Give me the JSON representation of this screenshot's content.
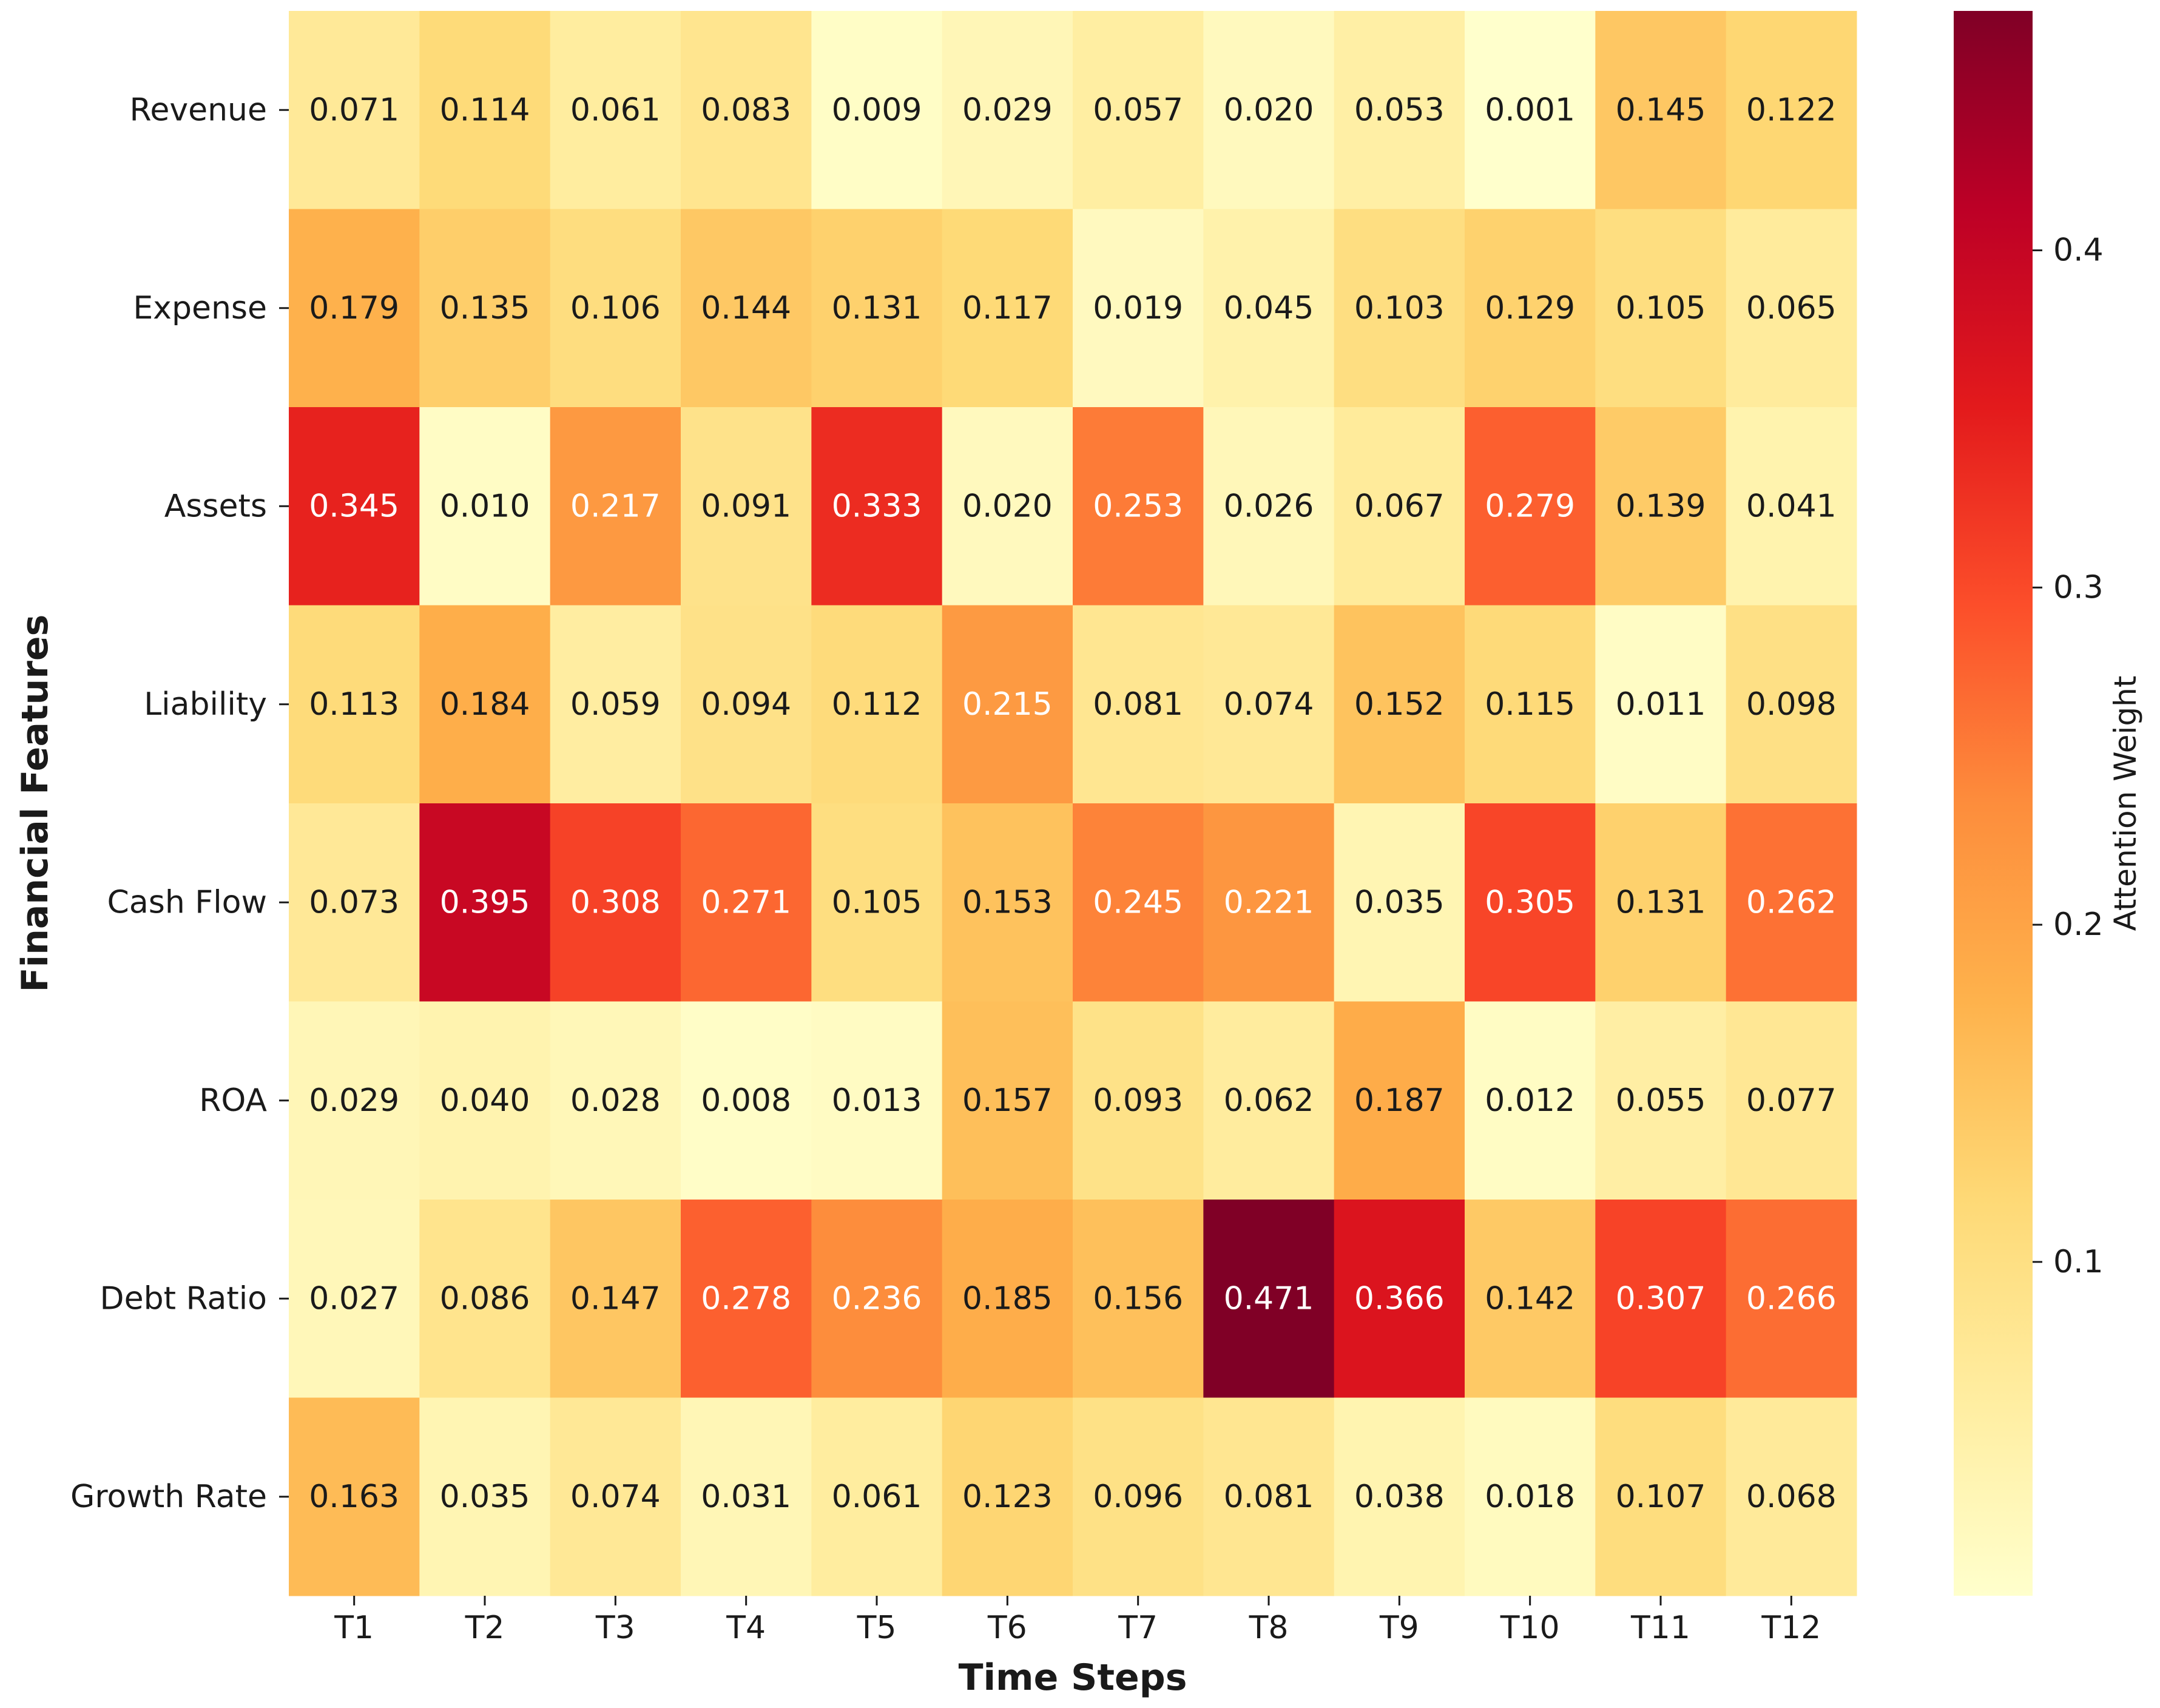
{
  "chart_data": {
    "type": "heatmap",
    "xlabel": "Time Steps",
    "ylabel": "Financial Features",
    "x_categories": [
      "T1",
      "T2",
      "T3",
      "T4",
      "T5",
      "T6",
      "T7",
      "T8",
      "T9",
      "T10",
      "T11",
      "T12"
    ],
    "y_categories": [
      "Revenue",
      "Expense",
      "Assets",
      "Liability",
      "Cash Flow",
      "ROA",
      "Debt Ratio",
      "Growth Rate"
    ],
    "values": [
      [
        0.071,
        0.114,
        0.061,
        0.083,
        0.009,
        0.029,
        0.057,
        0.02,
        0.053,
        0.001,
        0.145,
        0.122
      ],
      [
        0.179,
        0.135,
        0.106,
        0.144,
        0.131,
        0.117,
        0.019,
        0.045,
        0.103,
        0.129,
        0.105,
        0.065
      ],
      [
        0.345,
        0.01,
        0.217,
        0.091,
        0.333,
        0.02,
        0.253,
        0.026,
        0.067,
        0.279,
        0.139,
        0.041
      ],
      [
        0.113,
        0.184,
        0.059,
        0.094,
        0.112,
        0.215,
        0.081,
        0.074,
        0.152,
        0.115,
        0.011,
        0.098
      ],
      [
        0.073,
        0.395,
        0.308,
        0.271,
        0.105,
        0.153,
        0.245,
        0.221,
        0.035,
        0.305,
        0.131,
        0.262
      ],
      [
        0.029,
        0.04,
        0.028,
        0.008,
        0.013,
        0.157,
        0.093,
        0.062,
        0.187,
        0.012,
        0.055,
        0.077
      ],
      [
        0.027,
        0.086,
        0.147,
        0.278,
        0.236,
        0.185,
        0.156,
        0.471,
        0.366,
        0.142,
        0.307,
        0.266
      ],
      [
        0.163,
        0.035,
        0.074,
        0.031,
        0.061,
        0.123,
        0.096,
        0.081,
        0.038,
        0.018,
        0.107,
        0.068
      ]
    ],
    "value_labels": [
      [
        "0.071",
        "0.114",
        "0.061",
        "0.083",
        "0.009",
        "0.029",
        "0.057",
        "0.020",
        "0.053",
        "0.001",
        "0.145",
        "0.122"
      ],
      [
        "0.179",
        "0.135",
        "0.106",
        "0.144",
        "0.131",
        "0.117",
        "0.019",
        "0.045",
        "0.103",
        "0.129",
        "0.105",
        "0.065"
      ],
      [
        "0.345",
        "0.010",
        "0.217",
        "0.091",
        "0.333",
        "0.020",
        "0.253",
        "0.026",
        "0.067",
        "0.279",
        "0.139",
        "0.041"
      ],
      [
        "0.113",
        "0.184",
        "0.059",
        "0.094",
        "0.112",
        "0.215",
        "0.081",
        "0.074",
        "0.152",
        "0.115",
        "0.011",
        "0.098"
      ],
      [
        "0.073",
        "0.395",
        "0.308",
        "0.271",
        "0.105",
        "0.153",
        "0.245",
        "0.221",
        "0.035",
        "0.305",
        "0.131",
        "0.262"
      ],
      [
        "0.029",
        "0.040",
        "0.028",
        "0.008",
        "0.013",
        "0.157",
        "0.093",
        "0.062",
        "0.187",
        "0.012",
        "0.055",
        "0.077"
      ],
      [
        "0.027",
        "0.086",
        "0.147",
        "0.278",
        "0.236",
        "0.185",
        "0.156",
        "0.471",
        "0.366",
        "0.142",
        "0.307",
        "0.266"
      ],
      [
        "0.163",
        "0.035",
        "0.074",
        "0.031",
        "0.061",
        "0.123",
        "0.096",
        "0.081",
        "0.038",
        "0.018",
        "0.107",
        "0.068"
      ]
    ],
    "colorbar": {
      "label": "Attention Weight",
      "vmin": 0.001,
      "vmax": 0.471,
      "ticks": [
        0.1,
        0.2,
        0.3,
        0.4
      ],
      "tick_labels": [
        "0.1",
        "0.2",
        "0.3",
        "0.4"
      ],
      "colormap": "YlOrRd"
    }
  }
}
